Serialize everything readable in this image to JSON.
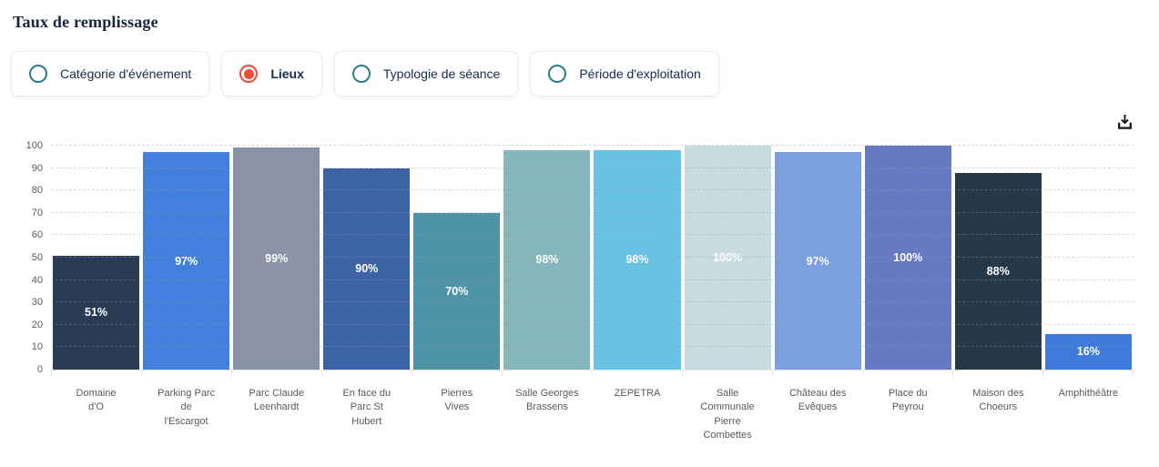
{
  "page": {
    "title": "Taux de remplissage"
  },
  "filters": {
    "options": [
      {
        "label": "Catégorie d'événement",
        "selected": false
      },
      {
        "label": "Lieux",
        "selected": true
      },
      {
        "label": "Typologie de séance",
        "selected": false
      },
      {
        "label": "Période d'exploitation",
        "selected": false
      }
    ]
  },
  "toolbar": {
    "download_icon": "download-icon"
  },
  "chart_data": {
    "type": "bar",
    "title": "Taux de remplissage",
    "categories": [
      "Domaine d'O",
      "Parking Parc de l'Escargot",
      "Parc Claude Leenhardt",
      "En face du Parc St Hubert",
      "Pierres Vives",
      "Salle Georges Brassens",
      "ZEPETRA",
      "Salle Communale Pierre Combettes",
      "Château des Evêques",
      "Place du Peyrou",
      "Maison des Choeurs",
      "Amphithéâtre"
    ],
    "tick_labels": [
      "Domaine\nd'O",
      "Parking Parc\nde\nl'Escargot",
      "Parc Claude\nLeenhardt",
      "En face du\nParc St\nHubert",
      "Pierres\nVives",
      "Salle Georges\nBrassens",
      "ZEPETRA",
      "Salle\nCommunale\nPierre\nCombettes",
      "Château des\nEvêques",
      "Place du\nPeyrou",
      "Maison des\nChoeurs",
      "Amphithéâtre"
    ],
    "values": [
      51,
      97,
      99,
      90,
      70,
      98,
      98,
      100,
      97,
      100,
      88,
      16
    ],
    "data_labels": [
      "51%",
      "97%",
      "99%",
      "90%",
      "70%",
      "98%",
      "98%",
      "100%",
      "97%",
      "100%",
      "88%",
      "16%"
    ],
    "bar_colors": [
      "#2a3c54",
      "#437fdc",
      "#8a93a3",
      "#3c63a6",
      "#4f93a6",
      "#85b7bb",
      "#68c3e2",
      "#c7dbe0",
      "#7c9fe0",
      "#6879c3",
      "#263949",
      "#3e7bdb"
    ],
    "xlabel": "",
    "ylabel": "",
    "ylim": [
      0,
      100
    ],
    "yticks": [
      0,
      10,
      20,
      30,
      40,
      50,
      60,
      70,
      80,
      90,
      100
    ],
    "grid": "horizontal-dashed",
    "legend": "none",
    "data_label_color": "#ffffff"
  },
  "colors": {
    "radio_selected": "#ee4e37",
    "radio_unselected": "#2f7a92",
    "title_text": "#16243c",
    "axis_text": "#55595e",
    "grid_line": "#d9dce1"
  }
}
